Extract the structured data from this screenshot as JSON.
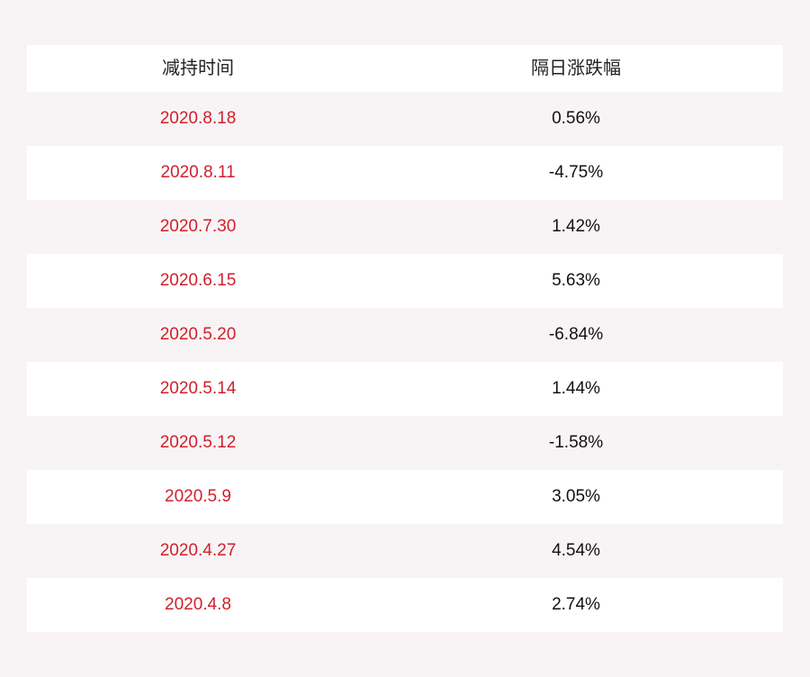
{
  "table": {
    "headers": [
      "减持时间",
      "隔日涨跌幅"
    ],
    "rows": [
      {
        "date": "2020.8.18",
        "change": "0.56%"
      },
      {
        "date": "2020.8.11",
        "change": "-4.75%"
      },
      {
        "date": "2020.7.30",
        "change": "1.42%"
      },
      {
        "date": "2020.6.15",
        "change": "5.63%"
      },
      {
        "date": "2020.5.20",
        "change": "-6.84%"
      },
      {
        "date": "2020.5.14",
        "change": "1.44%"
      },
      {
        "date": "2020.5.12",
        "change": "-1.58%"
      },
      {
        "date": "2020.5.9",
        "change": "3.05%"
      },
      {
        "date": "2020.4.27",
        "change": "4.54%"
      },
      {
        "date": "2020.4.8",
        "change": "2.74%"
      }
    ]
  },
  "colors": {
    "page_background": "#f8f4f5",
    "row_alt_background": "#ffffff",
    "date_text": "#d0202c",
    "value_text": "#111111"
  }
}
